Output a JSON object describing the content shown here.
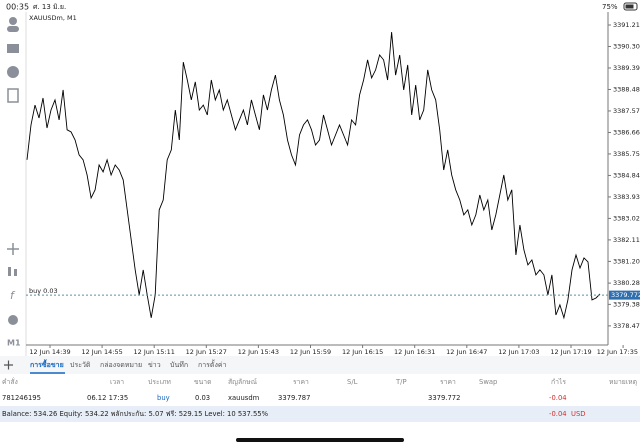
{
  "status": {
    "time": "00:35",
    "date": "ศ. 13 มิ.ย.",
    "battery": "75%"
  },
  "toolbar": {
    "func": "f",
    "period": "M1"
  },
  "chart": {
    "type": "line",
    "symbol": "XAUUSDm, M1",
    "color": "#000000",
    "values": [
      3385.5,
      3386.98,
      3387.82,
      3387.27,
      3388.12,
      3386.85,
      3387.61,
      3388.04,
      3387.19,
      3388.46,
      3386.77,
      3386.68,
      3386.34,
      3385.71,
      3385.5,
      3384.86,
      3383.89,
      3384.23,
      3385.28,
      3384.99,
      3385.5,
      3384.86,
      3385.28,
      3385.07,
      3384.65,
      3383.38,
      3382.11,
      3380.84,
      3379.78,
      3380.84,
      3379.78,
      3378.81,
      3379.78,
      3383.38,
      3383.8,
      3385.5,
      3385.92,
      3387.61,
      3386.34,
      3389.64,
      3388.88,
      3388.04,
      3388.8,
      3387.61,
      3387.82,
      3387.4,
      3388.88,
      3388.04,
      3388.46,
      3387.61,
      3388.04,
      3387.4,
      3386.77,
      3387.19,
      3387.61,
      3386.98,
      3388.04,
      3387.4,
      3386.77,
      3388.25,
      3387.61,
      3388.46,
      3389.09,
      3388.04,
      3387.4,
      3386.34,
      3385.71,
      3385.28,
      3386.55,
      3386.98,
      3387.19,
      3386.77,
      3386.13,
      3386.34,
      3387.4,
      3386.77,
      3386.13,
      3386.55,
      3386.98,
      3386.55,
      3386.13,
      3387.19,
      3386.98,
      3388.25,
      3388.88,
      3389.73,
      3388.97,
      3389.31,
      3389.94,
      3389.73,
      3388.88,
      3390.91,
      3389.09,
      3389.94,
      3388.46,
      3389.52,
      3387.4,
      3388.67,
      3387.19,
      3387.61,
      3389.31,
      3388.46,
      3388.04,
      3386.77,
      3385.07,
      3385.92,
      3384.86,
      3384.23,
      3383.8,
      3383.17,
      3383.38,
      3382.74,
      3383.17,
      3384.01,
      3383.38,
      3383.8,
      3382.53,
      3383.17,
      3384.01,
      3384.86,
      3383.8,
      3384.23,
      3381.47,
      3382.74,
      3381.69,
      3381.05,
      3381.26,
      3380.63,
      3380.84,
      3380.63,
      3379.78,
      3380.63,
      3378.93,
      3379.36,
      3378.81,
      3379.57,
      3380.84,
      3381.47,
      3380.92,
      3381.35,
      3381.18,
      3379.57,
      3379.65,
      3379.82
    ],
    "ylim": [
      3377.66,
      3391.76
    ],
    "yticks": [
      {
        "value": 3391.21,
        "label": "3391.210"
      },
      {
        "value": 3390.3,
        "label": "3390.300"
      },
      {
        "value": 3389.39,
        "label": "3389.390"
      },
      {
        "value": 3388.48,
        "label": "3388.480"
      },
      {
        "value": 3387.57,
        "label": "3387.570"
      },
      {
        "value": 3386.66,
        "label": "3386.660"
      },
      {
        "value": 3385.75,
        "label": "3385.750"
      },
      {
        "value": 3384.84,
        "label": "3384.840"
      },
      {
        "value": 3383.93,
        "label": "3383.930"
      },
      {
        "value": 3383.02,
        "label": "3383.020"
      },
      {
        "value": 3382.11,
        "label": "3382.110"
      },
      {
        "value": 3381.2,
        "label": "3381.200"
      },
      {
        "value": 3380.28,
        "label": "3380.280"
      },
      {
        "value": 3379.38,
        "label": "3379.380"
      },
      {
        "value": 3378.47,
        "label": "3378.470"
      }
    ],
    "xticks": [
      "12 Jun 14:39",
      "12 Jun 14:55",
      "12 Jun 15:11",
      "12 Jun 15:27",
      "12 Jun 15:43",
      "12 Jun 15:59",
      "12 Jun 16:15",
      "12 Jun 16:31",
      "12 Jun 16:47",
      "12 Jun 17:03",
      "12 Jun 17:19",
      "12 Jun 17:35"
    ],
    "bid": 3379.772,
    "order_label": "buy 0.03"
  },
  "tabs": [
    "การซื้อขาย",
    "ประวัติ",
    "กล่องจดหมาย",
    "ข่าว",
    "บันทึก",
    "การตั้งค่า"
  ],
  "table": {
    "headers": [
      "คำสั่ง",
      "เวลา",
      "ประเภท",
      "ขนาด",
      "สัญลักษณ์",
      "ราคา",
      "S/L",
      "T/P",
      "ราคา",
      "Swap",
      "กำไร",
      "หมายเหตุ"
    ],
    "row": [
      "781246195",
      "06.12 17:35",
      "buy",
      "0.03",
      "xauusdm",
      "3379.787",
      "3379.772",
      "-0.04"
    ]
  },
  "balance": {
    "text": "Balance: 534.26 Equity: 534.22 พลักประกัน: 5.07 ฟรี: 529.15 Level: 10 537.55%",
    "profit": "-0.04",
    "currency": "USD"
  }
}
